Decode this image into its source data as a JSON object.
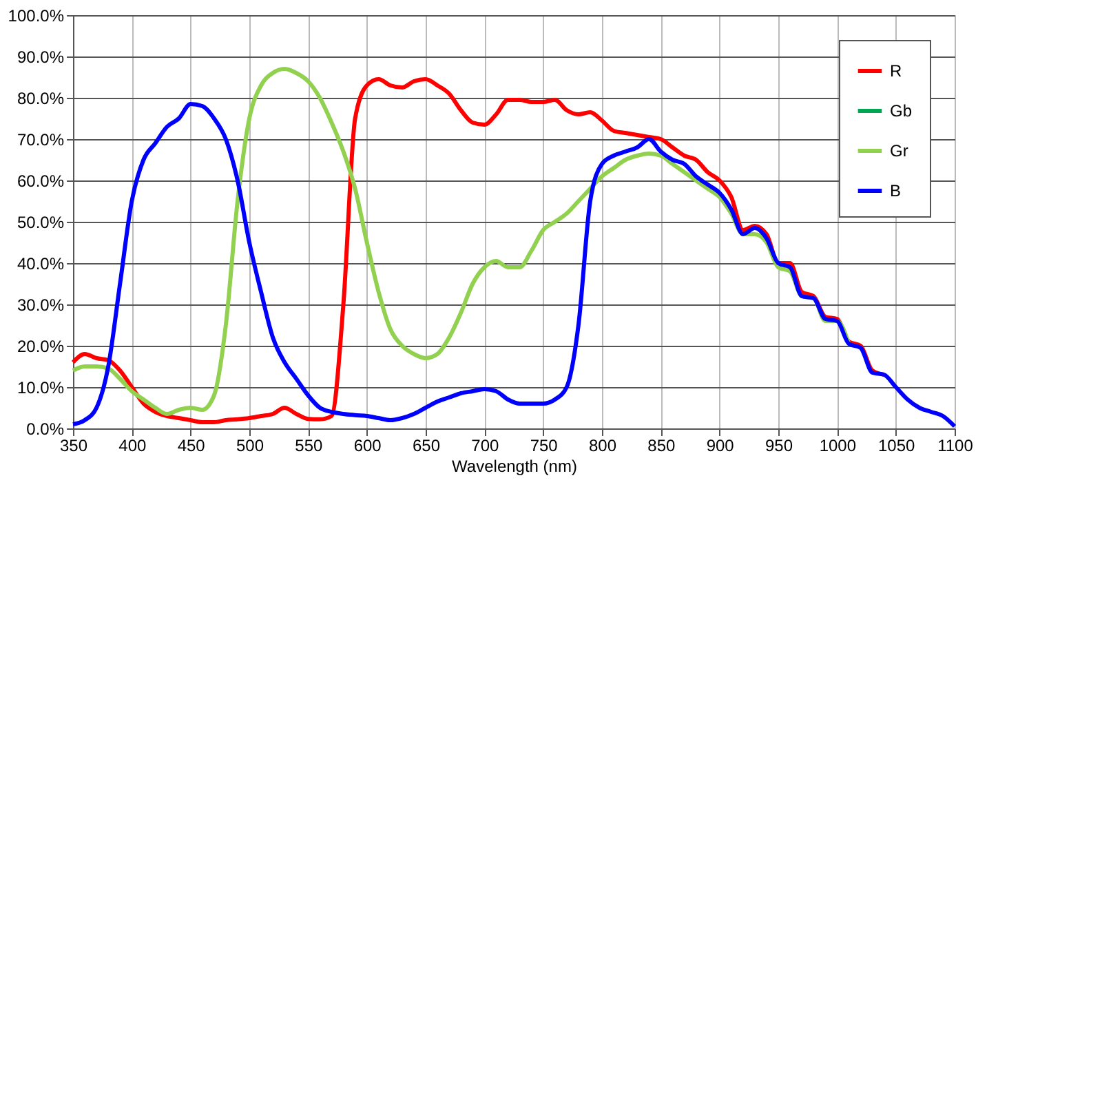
{
  "chart_data": {
    "type": "line",
    "xlabel": "Wavelength (nm)",
    "xlim": [
      350,
      1100
    ],
    "xticks": [
      350,
      400,
      450,
      500,
      550,
      600,
      650,
      700,
      750,
      800,
      850,
      900,
      950,
      1000,
      1050,
      1100
    ],
    "ylim": [
      0,
      100
    ],
    "yticks": [
      {
        "value": 0,
        "label": "0.0%"
      },
      {
        "value": 10,
        "label": "10.0%"
      },
      {
        "value": 20,
        "label": "20.0%"
      },
      {
        "value": 30,
        "label": "30.0%"
      },
      {
        "value": 40,
        "label": "40.0%"
      },
      {
        "value": 50,
        "label": "50.0%"
      },
      {
        "value": 60,
        "label": "60.0%"
      },
      {
        "value": 70,
        "label": "70.0%"
      },
      {
        "value": 80,
        "label": "80.0%"
      },
      {
        "value": 90,
        "label": "90.0%"
      },
      {
        "value": 100,
        "label": "100.0%"
      }
    ],
    "grid": true,
    "legend": "top right",
    "marker": "none",
    "line_style": "solid",
    "x": [
      350,
      360,
      370,
      380,
      390,
      400,
      410,
      420,
      430,
      440,
      450,
      460,
      470,
      480,
      490,
      500,
      510,
      520,
      530,
      540,
      550,
      560,
      570,
      580,
      590,
      600,
      610,
      620,
      630,
      640,
      650,
      660,
      670,
      680,
      690,
      700,
      710,
      720,
      730,
      740,
      750,
      760,
      770,
      780,
      790,
      800,
      810,
      820,
      830,
      840,
      850,
      860,
      870,
      880,
      890,
      900,
      910,
      920,
      930,
      940,
      950,
      960,
      970,
      980,
      990,
      1000,
      1010,
      1020,
      1030,
      1040,
      1050,
      1060,
      1070,
      1080,
      1090,
      1100
    ],
    "series": [
      {
        "name": "R",
        "color": "#ff0000",
        "values": [
          16,
          18,
          17,
          16.5,
          14,
          10,
          6,
          4,
          3,
          2.5,
          2,
          1.5,
          1.5,
          2,
          2.2,
          2.5,
          3,
          3.5,
          5,
          3.5,
          2.3,
          2.2,
          3,
          30,
          75,
          83,
          84.5,
          83,
          82.5,
          84,
          84.5,
          83,
          81,
          77,
          74,
          73.5,
          76,
          79.5,
          79.5,
          79,
          79,
          79.5,
          77,
          76,
          76.5,
          74.5,
          72,
          71.5,
          71,
          70.5,
          70,
          68,
          66,
          65,
          62,
          60,
          56,
          48,
          49,
          47,
          40,
          40,
          33,
          32,
          27,
          26.5,
          21,
          20,
          14,
          13,
          null,
          null,
          null,
          null,
          null,
          null
        ]
      },
      {
        "name": "Gb",
        "color": "#00a651",
        "values": [
          null,
          null,
          null,
          null,
          null,
          null,
          null,
          null,
          null,
          null,
          null,
          null,
          null,
          null,
          null,
          null,
          null,
          null,
          null,
          null,
          null,
          null,
          null,
          null,
          null,
          null,
          null,
          null,
          null,
          null,
          null,
          null,
          null,
          null,
          null,
          null,
          null,
          null,
          null,
          null,
          null,
          null,
          null,
          null,
          null,
          null,
          null,
          null,
          null,
          null,
          null,
          null,
          null,
          null,
          null,
          null,
          null,
          null,
          null,
          null,
          null,
          null,
          null,
          null,
          null,
          null,
          null,
          null,
          null,
          null,
          null,
          null,
          null,
          null,
          null,
          null
        ]
      },
      {
        "name": "Gr",
        "color": "#92d050",
        "values": [
          14,
          15,
          15,
          14.5,
          12,
          9,
          7,
          5,
          3.5,
          4.5,
          5,
          4.5,
          8,
          25,
          55,
          75,
          83,
          86,
          87,
          86,
          84,
          80,
          74,
          67,
          58,
          45,
          33,
          24,
          20,
          18,
          17,
          18,
          22,
          28,
          35,
          39,
          40.5,
          39,
          39,
          43,
          48,
          50,
          52,
          55,
          58,
          61,
          63,
          65,
          66,
          66.5,
          66,
          64,
          62,
          60,
          58,
          56,
          52,
          47,
          47,
          45,
          39,
          38,
          32,
          31.5,
          26,
          26,
          20.5,
          null,
          null,
          null,
          null,
          null,
          null,
          null,
          null,
          null
        ]
      },
      {
        "name": "B",
        "color": "#0000ff",
        "values": [
          1,
          2,
          5,
          15,
          35,
          55,
          65,
          69,
          73,
          75,
          78.5,
          78,
          75,
          70,
          60,
          45,
          33,
          22,
          16,
          12,
          8,
          5,
          4,
          3.5,
          3.2,
          3,
          2.5,
          2,
          2.5,
          3.5,
          5,
          6.5,
          7.5,
          8.5,
          9,
          9.5,
          9,
          7,
          6,
          6,
          6,
          7,
          10,
          25,
          55,
          64,
          66,
          67,
          68,
          70,
          67,
          65,
          64,
          61,
          59,
          57,
          53,
          47,
          48.5,
          46,
          40,
          39,
          32,
          31.5,
          26.5,
          26,
          20.5,
          19.5,
          13.5,
          13,
          10,
          7,
          5,
          4,
          3,
          0.5
        ]
      }
    ]
  }
}
